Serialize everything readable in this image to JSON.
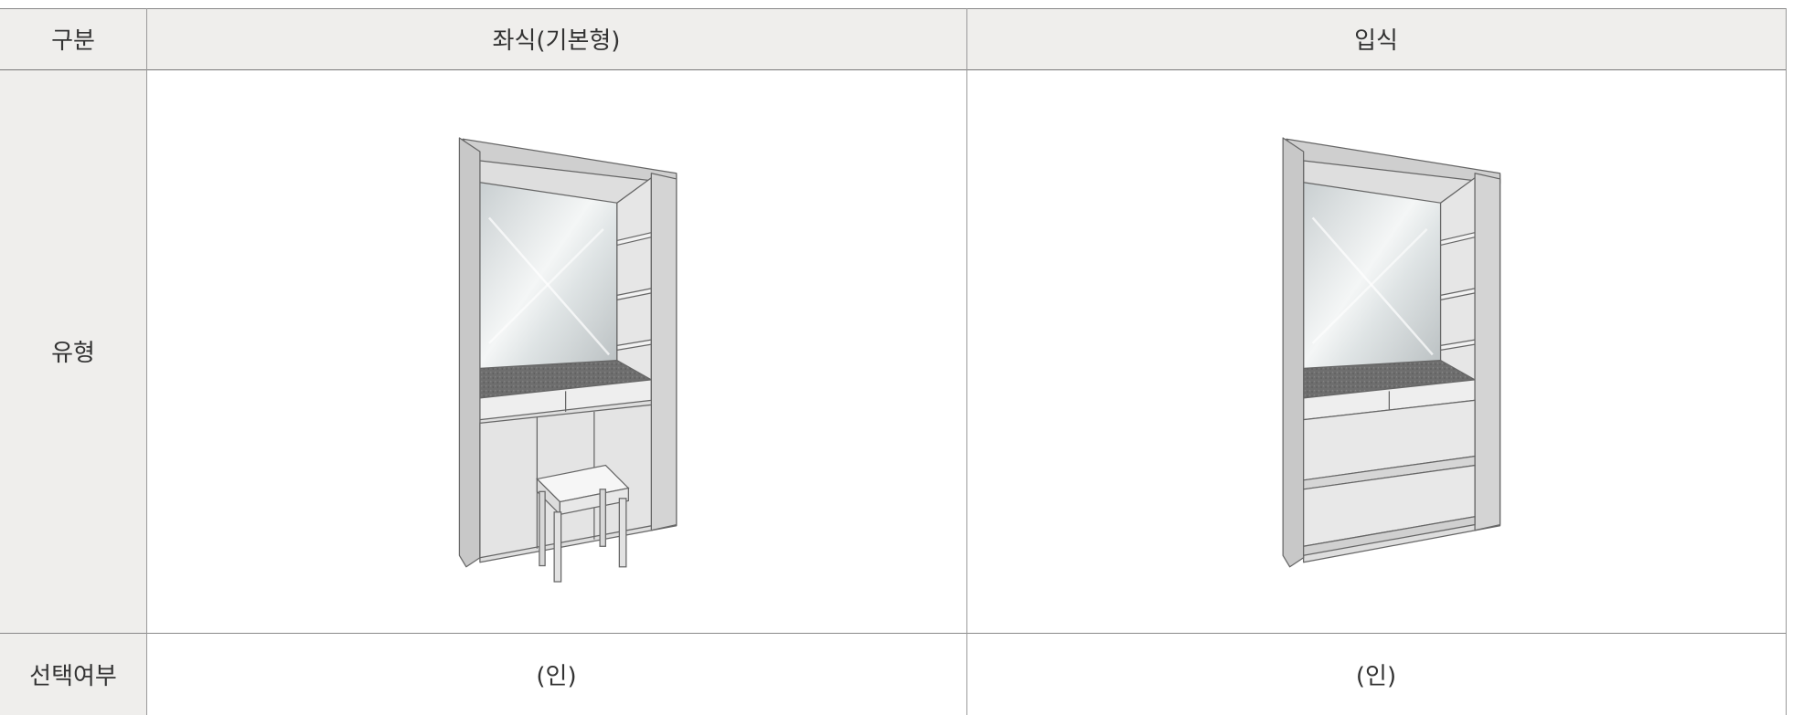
{
  "table": {
    "header": [
      "구분",
      "좌식(기본형)",
      "입식"
    ],
    "rows": [
      [
        "유형"
      ],
      [
        "선택여부",
        "(인)",
        "(인)"
      ]
    ]
  }
}
